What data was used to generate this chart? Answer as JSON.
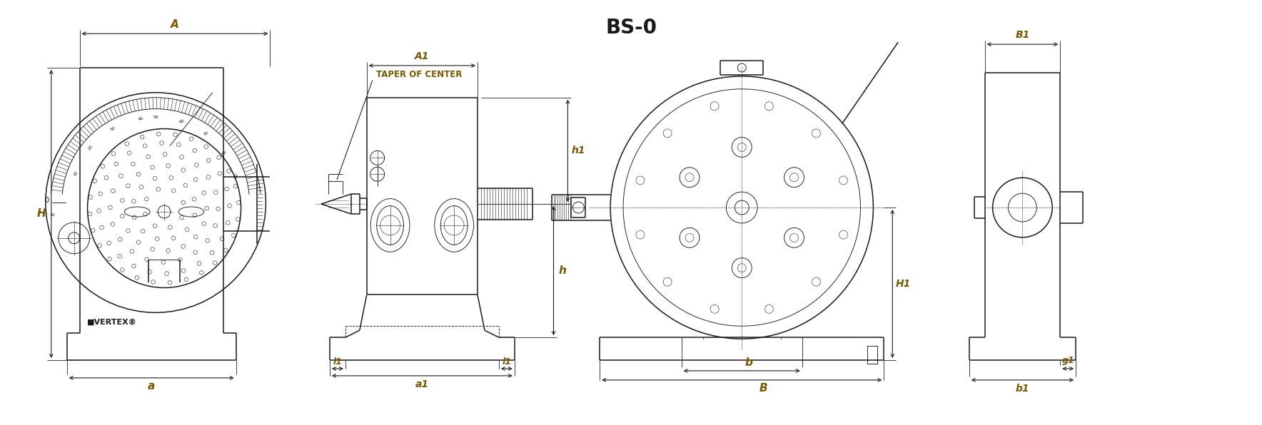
{
  "title": "BS-0",
  "background": "#ffffff",
  "lc": "#1a1a1a",
  "dc": "#1a1a1a",
  "tc": "#7B5800",
  "figsize": [
    17.68,
    5.96
  ],
  "dpi": 100,
  "taper_label": "TAPER OF CENTER",
  "vertex_text": "■VERTEX®",
  "labels": {
    "A": "A",
    "a": "a",
    "H": "H",
    "h": "h",
    "h1": "h1",
    "A1": "A1",
    "a1": "a1",
    "l1": "l1",
    "B": "B",
    "b": "b",
    "B1": "B1",
    "b1": "b1",
    "H1": "H1",
    "g1": "g1"
  }
}
